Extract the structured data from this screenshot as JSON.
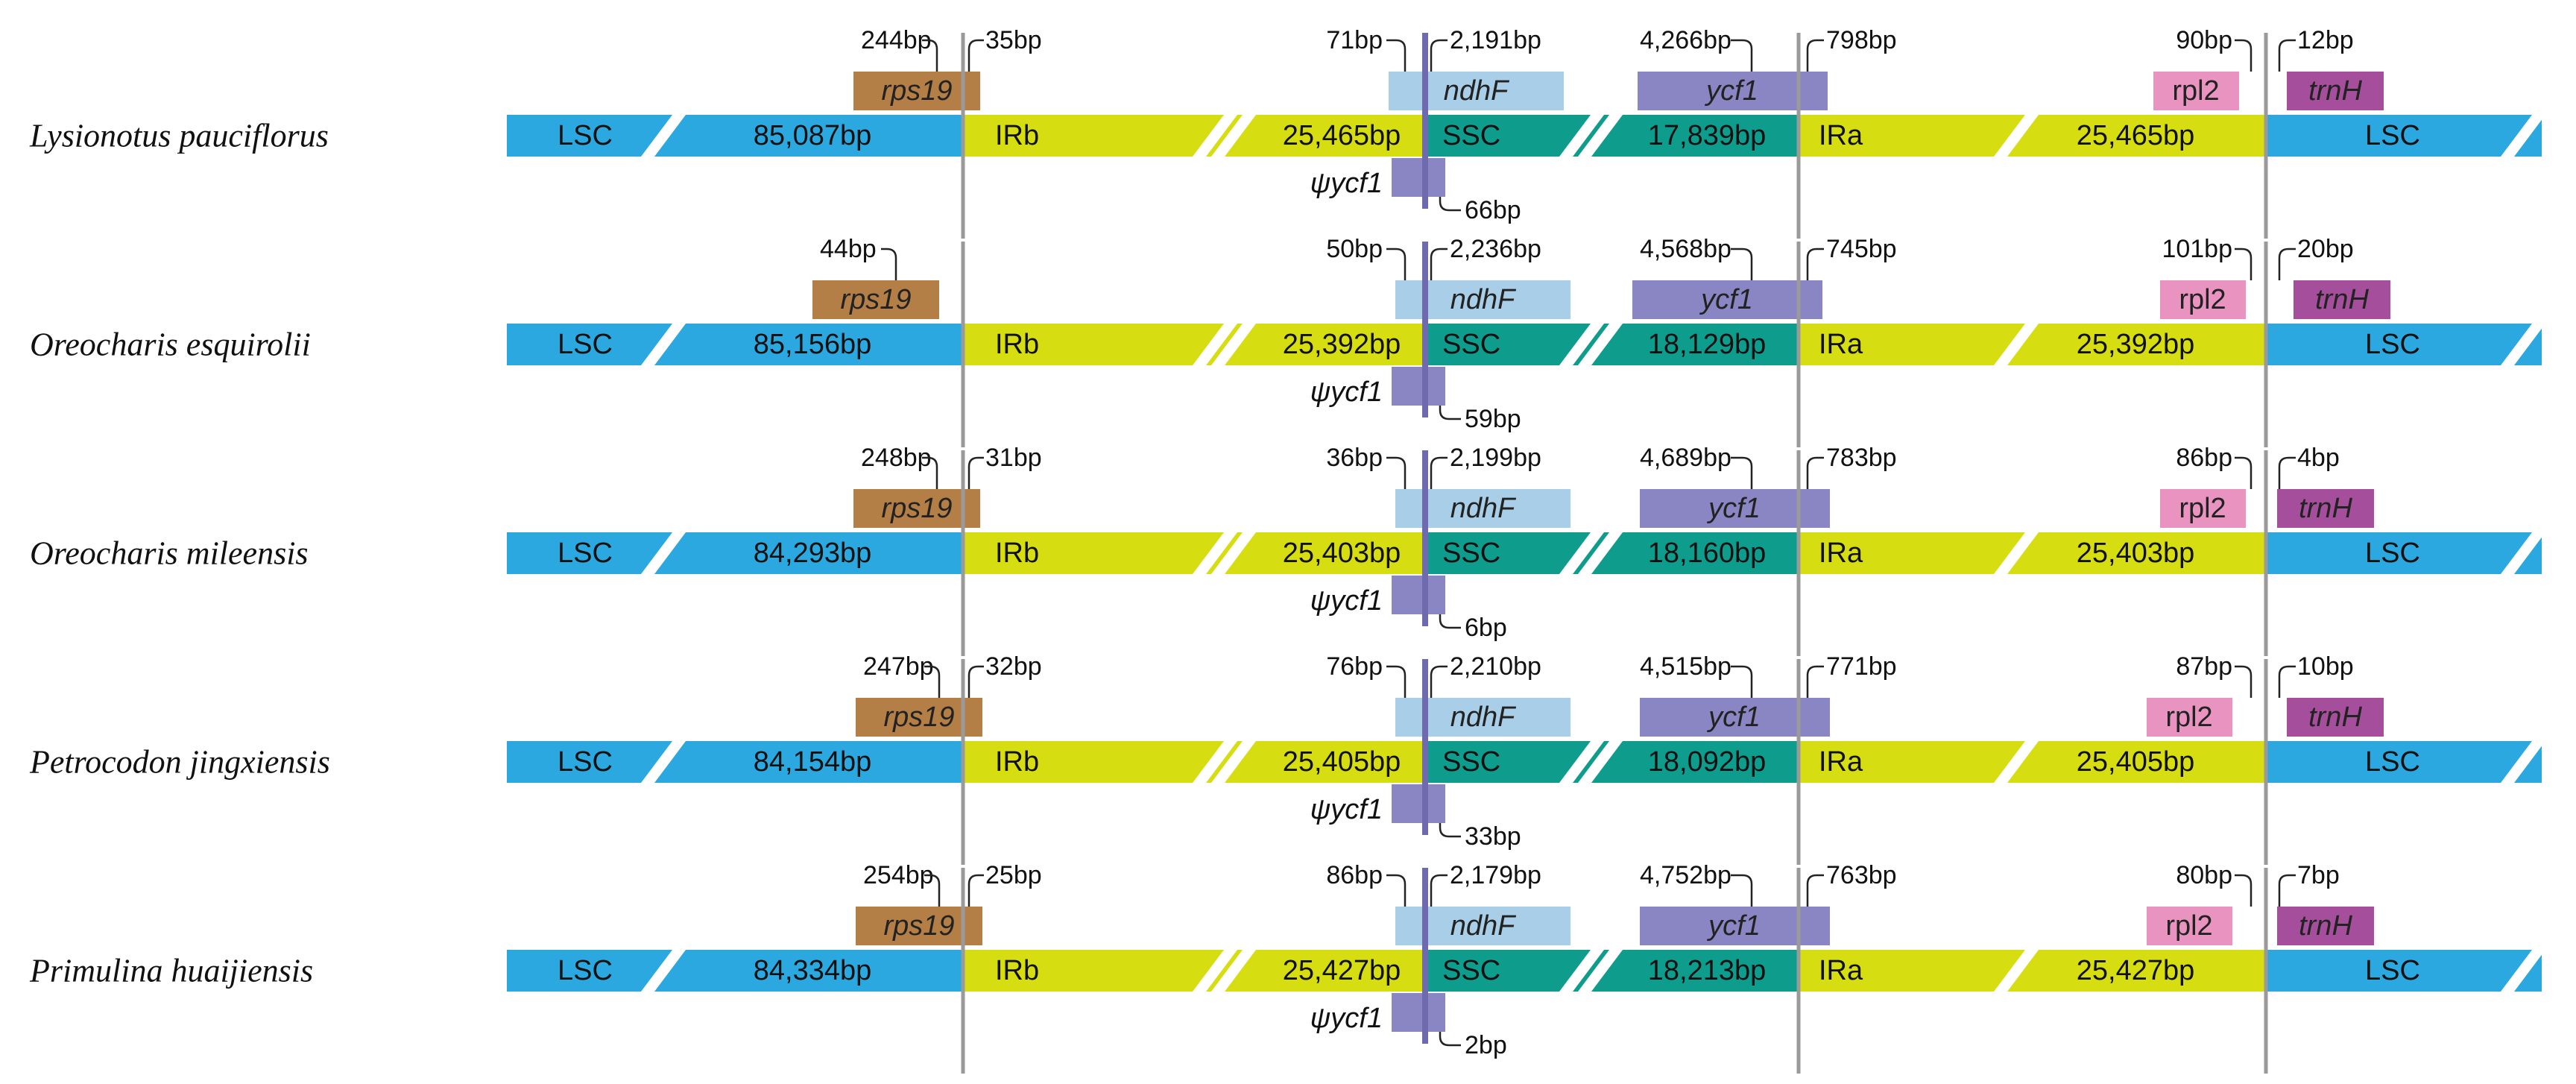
{
  "colors": {
    "lsc": "#2ba8df",
    "ir": "#d6dd10",
    "ssc": "#0e9c8c",
    "rps19": "#b47f46",
    "ndhF": "#a9cfe8",
    "ycf1": "#8a86c4",
    "rpl2": "#e994c0",
    "trnH": "#a44e9c",
    "junction": "#9a9a9a",
    "jsa": "#6f6aad"
  },
  "region_labels": {
    "lsc": "LSC",
    "irb": "IRb",
    "ssc": "SSC",
    "ira": "IRa"
  },
  "gene_labels": {
    "rps19": "rps19",
    "ndhF": "ndhF",
    "ycf1": "ycf1",
    "psi_ycf1": "ψycf1",
    "rpl2": "rpl2",
    "trnH": "trnH"
  },
  "rows": [
    {
      "species": "Lysionotus pauciflorus",
      "lsc": "85,087bp",
      "irb": "25,465bp",
      "ssc": "17,839bp",
      "ira": "25,465bp",
      "rps19_left": "244bp",
      "rps19_right": "35bp",
      "ndhF_left": "71bp",
      "ndhF_right": "2,191bp",
      "ycf1_left": "4,266bp",
      "ycf1_right": "798bp",
      "psi_ycf1": "66bp",
      "rpl2": "90bp",
      "trnH": "12bp"
    },
    {
      "species": "Oreocharis esquirolii",
      "lsc": "85,156bp",
      "irb": "25,392bp",
      "ssc": "18,129bp",
      "ira": "25,392bp",
      "rps19_left": "44bp",
      "rps19_right": "",
      "ndhF_left": "50bp",
      "ndhF_right": "2,236bp",
      "ycf1_left": "4,568bp",
      "ycf1_right": "745bp",
      "psi_ycf1": "59bp",
      "rpl2": "101bp",
      "trnH": "20bp"
    },
    {
      "species": "Oreocharis mileensis",
      "lsc": "84,293bp",
      "irb": "25,403bp",
      "ssc": "18,160bp",
      "ira": "25,403bp",
      "rps19_left": "248bp",
      "rps19_right": "31bp",
      "ndhF_left": "36bp",
      "ndhF_right": "2,199bp",
      "ycf1_left": "4,689bp",
      "ycf1_right": "783bp",
      "psi_ycf1": "6bp",
      "rpl2": "86bp",
      "trnH": "4bp"
    },
    {
      "species": "Petrocodon jingxiensis",
      "lsc": "84,154bp",
      "irb": "25,405bp",
      "ssc": "18,092bp",
      "ira": "25,405bp",
      "rps19_left": "247bp",
      "rps19_right": "32bp",
      "ndhF_left": "76bp",
      "ndhF_right": "2,210bp",
      "ycf1_left": "4,515bp",
      "ycf1_right": "771bp",
      "psi_ycf1": "33bp",
      "rpl2": "87bp",
      "trnH": "10bp"
    },
    {
      "species": "Primulina huaijiensis",
      "lsc": "84,334bp",
      "irb": "25,427bp",
      "ssc": "18,213bp",
      "ira": "25,427bp",
      "rps19_left": "254bp",
      "rps19_right": "25bp",
      "ndhF_left": "86bp",
      "ndhF_right": "2,179bp",
      "ycf1_left": "4,752bp",
      "ycf1_right": "763bp",
      "psi_ycf1": "2bp",
      "rpl2": "80bp",
      "trnH": "7bp"
    }
  ]
}
